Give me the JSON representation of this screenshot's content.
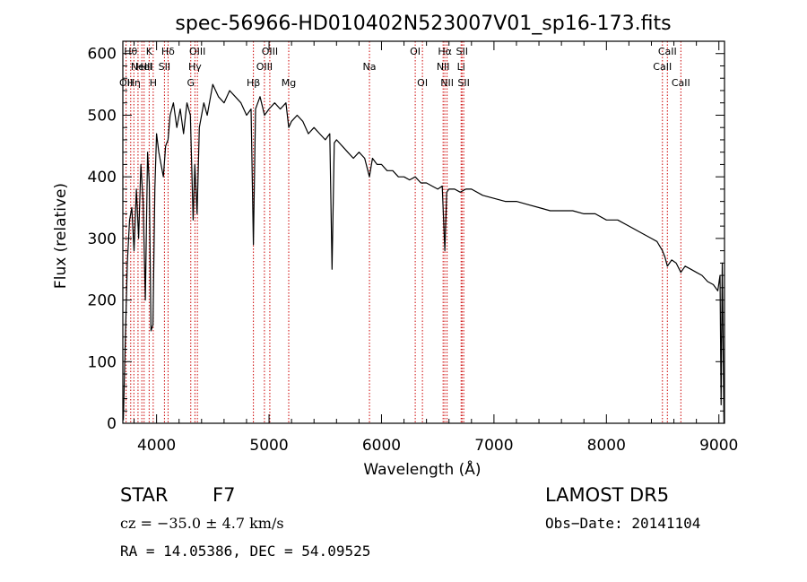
{
  "chart_data": {
    "type": "line",
    "title": "spec-56966-HD010402N523007V01_sp16-173.fits",
    "xlabel": "Wavelength (Å)",
    "ylabel": "Flux (relative)",
    "xlim": [
      3700,
      9050
    ],
    "ylim": [
      0,
      620
    ],
    "xticks": [
      4000,
      5000,
      6000,
      7000,
      8000,
      9000
    ],
    "yticks": [
      0,
      100,
      200,
      300,
      400,
      500,
      600
    ],
    "grid": false,
    "line_color": "#000000",
    "marker_color": "#cc0000",
    "series": [
      {
        "x": [
          3705,
          3720,
          3740,
          3760,
          3780,
          3800,
          3820,
          3840,
          3860,
          3880,
          3900,
          3920,
          3935,
          3950,
          3968,
          3985,
          4000,
          4020,
          4040,
          4060,
          4080,
          4102,
          4120,
          4150,
          4180,
          4210,
          4240,
          4270,
          4300,
          4325,
          4340,
          4360,
          4380,
          4420,
          4450,
          4480,
          4500,
          4550,
          4600,
          4650,
          4700,
          4750,
          4800,
          4840,
          4861,
          4880,
          4920,
          4960,
          5000,
          5050,
          5100,
          5150,
          5175,
          5200,
          5250,
          5300,
          5350,
          5400,
          5450,
          5500,
          5540,
          5560,
          5580,
          5600,
          5650,
          5700,
          5750,
          5800,
          5850,
          5893,
          5920,
          5960,
          6000,
          6050,
          6100,
          6150,
          6200,
          6250,
          6300,
          6350,
          6400,
          6450,
          6500,
          6540,
          6563,
          6580,
          6600,
          6650,
          6700,
          6750,
          6800,
          6900,
          7000,
          7100,
          7200,
          7300,
          7400,
          7500,
          7600,
          7700,
          7800,
          7900,
          8000,
          8100,
          8200,
          8300,
          8400,
          8450,
          8498,
          8520,
          8542,
          8580,
          8620,
          8662,
          8700,
          8750,
          8800,
          8850,
          8900,
          8950,
          8990,
          9010,
          9020,
          9030,
          9045
        ],
        "y": [
          5,
          120,
          260,
          330,
          350,
          280,
          380,
          300,
          420,
          360,
          200,
          440,
          390,
          150,
          160,
          380,
          470,
          440,
          420,
          400,
          450,
          460,
          500,
          520,
          480,
          510,
          470,
          520,
          500,
          330,
          420,
          340,
          480,
          520,
          500,
          530,
          550,
          530,
          520,
          540,
          530,
          520,
          500,
          510,
          290,
          510,
          530,
          500,
          510,
          520,
          510,
          520,
          480,
          490,
          500,
          490,
          470,
          480,
          470,
          460,
          470,
          250,
          455,
          460,
          450,
          440,
          430,
          440,
          430,
          400,
          430,
          420,
          420,
          410,
          410,
          400,
          400,
          395,
          400,
          390,
          390,
          385,
          380,
          385,
          280,
          375,
          380,
          380,
          375,
          380,
          380,
          370,
          365,
          360,
          360,
          355,
          350,
          345,
          345,
          345,
          340,
          340,
          330,
          330,
          320,
          310,
          300,
          295,
          280,
          270,
          255,
          265,
          260,
          245,
          255,
          250,
          245,
          240,
          230,
          225,
          215,
          240,
          30,
          260,
          0
        ]
      }
    ],
    "lines": [
      {
        "x": 3729,
        "labels": [
          {
            "text": "OII",
            "row": 3
          }
        ]
      },
      {
        "x": 3770,
        "labels": [
          {
            "text": "Hθ",
            "row": 1
          }
        ]
      },
      {
        "x": 3798,
        "labels": [
          {
            "text": "Hη",
            "row": 3
          }
        ]
      },
      {
        "x": 3835,
        "labels": [
          {
            "text": "",
            "row": 1
          }
        ]
      },
      {
        "x": 3869,
        "labels": [
          {
            "text": "NeIII",
            "row": 2
          }
        ]
      },
      {
        "x": 3889,
        "labels": [
          {
            "text": "HeI",
            "row": 2
          }
        ]
      },
      {
        "x": 3934,
        "labels": [
          {
            "text": "K",
            "row": 1
          }
        ]
      },
      {
        "x": 3970,
        "labels": [
          {
            "text": "H",
            "row": 3
          }
        ]
      },
      {
        "x": 4070,
        "labels": [
          {
            "text": "SII",
            "row": 2
          }
        ]
      },
      {
        "x": 4102,
        "labels": [
          {
            "text": "Hδ",
            "row": 1
          }
        ]
      },
      {
        "x": 4304,
        "labels": [
          {
            "text": "G",
            "row": 3
          }
        ]
      },
      {
        "x": 4341,
        "labels": [
          {
            "text": "Hγ",
            "row": 2
          }
        ]
      },
      {
        "x": 4363,
        "labels": [
          {
            "text": "OIII",
            "row": 1
          }
        ]
      },
      {
        "x": 4861,
        "labels": [
          {
            "text": "Hβ",
            "row": 3
          }
        ]
      },
      {
        "x": 4959,
        "labels": [
          {
            "text": "OIII",
            "row": 2
          }
        ]
      },
      {
        "x": 5007,
        "labels": [
          {
            "text": "OIII",
            "row": 1
          }
        ]
      },
      {
        "x": 5175,
        "labels": [
          {
            "text": "Mg",
            "row": 3
          }
        ]
      },
      {
        "x": 5893,
        "labels": [
          {
            "text": "Na",
            "row": 2
          }
        ]
      },
      {
        "x": 6300,
        "labels": [
          {
            "text": "OI",
            "row": 1
          }
        ]
      },
      {
        "x": 6364,
        "labels": [
          {
            "text": "OI",
            "row": 3
          }
        ]
      },
      {
        "x": 6548,
        "labels": [
          {
            "text": "NII",
            "row": 2
          }
        ]
      },
      {
        "x": 6563,
        "labels": [
          {
            "text": "Hα",
            "row": 1
          }
        ]
      },
      {
        "x": 6583,
        "labels": [
          {
            "text": "NII",
            "row": 3
          }
        ]
      },
      {
        "x": 6708,
        "labels": [
          {
            "text": "Li",
            "row": 2
          }
        ]
      },
      {
        "x": 6716,
        "labels": [
          {
            "text": "SII",
            "row": 1
          }
        ]
      },
      {
        "x": 6731,
        "labels": [
          {
            "text": "SII",
            "row": 3
          }
        ]
      },
      {
        "x": 8498,
        "labels": [
          {
            "text": "CaII",
            "row": 2
          }
        ]
      },
      {
        "x": 8542,
        "labels": [
          {
            "text": "CaII",
            "row": 1
          }
        ]
      },
      {
        "x": 8662,
        "labels": [
          {
            "text": "CaII",
            "row": 3
          }
        ]
      }
    ]
  },
  "info": {
    "class_label": "STAR",
    "subclass": "F7",
    "survey": "LAMOST DR5",
    "cz": "cz = −35.0 ± 4.7 km/s",
    "obs_date": "Obs−Date: 20141104",
    "coords": "RA =  14.05386, DEC =  54.09525"
  }
}
